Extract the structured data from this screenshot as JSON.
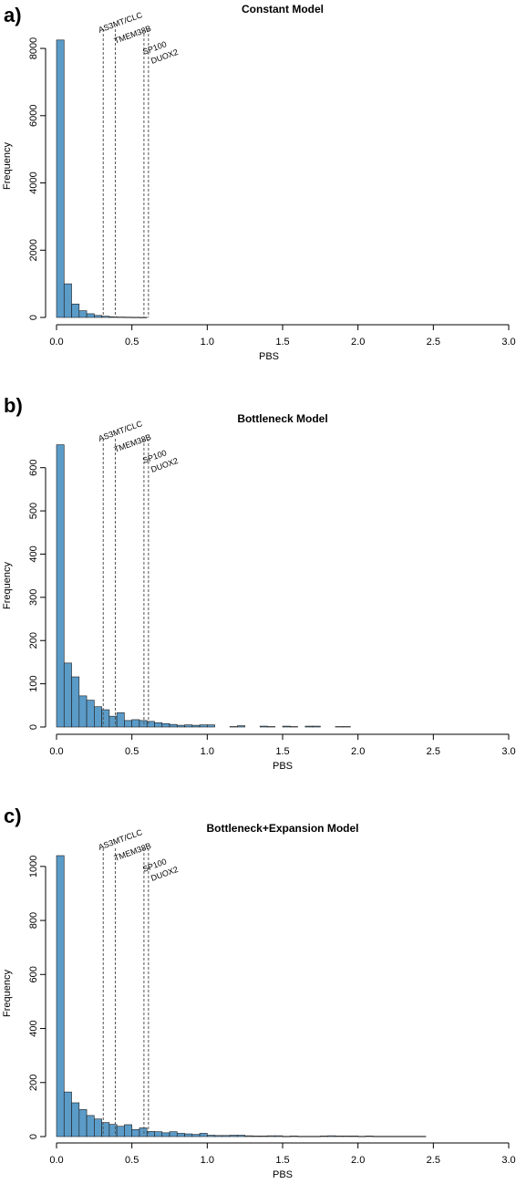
{
  "figure": {
    "bar_color": "#5b9bc8",
    "bar_edge_color": "#1a1a1a",
    "marker_line_color": "#555555"
  },
  "chart_data": [
    {
      "type": "bar",
      "panel": "a)",
      "title": "Constant Model",
      "xlabel": "PBS",
      "ylabel": "Frequency",
      "xlim": [
        0,
        3.0
      ],
      "ylim": [
        0,
        8300
      ],
      "xticks": [
        0.0,
        0.5,
        1.0,
        1.5,
        2.0,
        2.5,
        3.0
      ],
      "xtick_labels": [
        "0.0",
        "0.5",
        "1.0",
        "1.5",
        "2.0",
        "2.5",
        "3.0"
      ],
      "yticks": [
        0,
        2000,
        4000,
        6000,
        8000
      ],
      "ytick_labels": [
        "0",
        "2000",
        "4000",
        "6000",
        "8000"
      ],
      "bin_width": 0.05,
      "bin_start": 0.0,
      "values": [
        8250,
        1000,
        400,
        200,
        110,
        60,
        35,
        20,
        12,
        8,
        5,
        3
      ],
      "markers": [
        {
          "label": "AS3MT/CLC",
          "x": 0.31
        },
        {
          "label": "TMEM38B",
          "x": 0.39
        },
        {
          "label": "SP100",
          "x": 0.58
        },
        {
          "label": "DUOX2",
          "x": 0.61
        }
      ]
    },
    {
      "type": "bar",
      "panel": "b)",
      "title": "Bottleneck Model",
      "xlabel": "PBS",
      "ylabel": "Frequency",
      "xlim": [
        0,
        3.0
      ],
      "ylim": [
        0,
        650
      ],
      "xticks": [
        0.0,
        0.5,
        1.0,
        1.5,
        2.0,
        2.5,
        3.0
      ],
      "xtick_labels": [
        "0.0",
        "0.5",
        "1.0",
        "1.5",
        "2.0",
        "2.5",
        "3.0"
      ],
      "yticks": [
        0,
        100,
        200,
        300,
        400,
        500,
        600
      ],
      "ytick_labels": [
        "0",
        "100",
        "200",
        "300",
        "400",
        "500",
        "600"
      ],
      "bin_width": 0.05,
      "bin_start": 0.0,
      "values": [
        653,
        148,
        116,
        72,
        62,
        47,
        40,
        25,
        33,
        15,
        17,
        15,
        13,
        10,
        8,
        6,
        4,
        5,
        4,
        5,
        5,
        0,
        0,
        1,
        3,
        0,
        0,
        2,
        1,
        0,
        2,
        1,
        0,
        2,
        2,
        0,
        0,
        1,
        1
      ],
      "markers": [
        {
          "label": "AS3MT/CLC",
          "x": 0.31
        },
        {
          "label": "TMEM38B",
          "x": 0.39
        },
        {
          "label": "SP100",
          "x": 0.58
        },
        {
          "label": "DUOX2",
          "x": 0.61
        }
      ]
    },
    {
      "type": "bar",
      "panel": "c)",
      "title": "Bottleneck+Expansion Model",
      "xlabel": "PBS",
      "ylabel": "Frequency",
      "xlim": [
        0,
        3.0
      ],
      "ylim": [
        0,
        1040
      ],
      "xticks": [
        0.0,
        0.5,
        1.0,
        1.5,
        2.0,
        2.5,
        3.0
      ],
      "xtick_labels": [
        "0.0",
        "0.5",
        "1.0",
        "1.5",
        "2.0",
        "2.5",
        "3.0"
      ],
      "yticks": [
        0,
        200,
        400,
        600,
        800,
        1000
      ],
      "ytick_labels": [
        "0",
        "200",
        "400",
        "600",
        "800",
        "1000"
      ],
      "bin_width": 0.05,
      "bin_start": 0.0,
      "values": [
        1040,
        165,
        125,
        100,
        78,
        65,
        52,
        45,
        38,
        44,
        26,
        32,
        19,
        18,
        14,
        18,
        12,
        10,
        8,
        12,
        5,
        4,
        4,
        5,
        5,
        3,
        2,
        2,
        3,
        3,
        1,
        2,
        1,
        1,
        1,
        2,
        3,
        2,
        2,
        2,
        1,
        2,
        1,
        1,
        1,
        1,
        1,
        1,
        1
      ],
      "markers": [
        {
          "label": "AS3MT/CLC",
          "x": 0.31
        },
        {
          "label": "TMEM38B",
          "x": 0.39
        },
        {
          "label": "SP100",
          "x": 0.58
        },
        {
          "label": "DUOX2",
          "x": 0.61
        }
      ]
    }
  ]
}
